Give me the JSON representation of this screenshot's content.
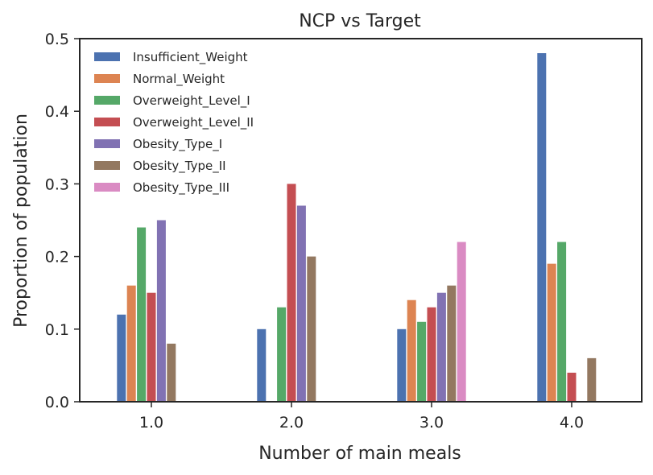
{
  "chart_data": {
    "type": "bar",
    "title": "NCP vs Target",
    "xlabel": "Number of main meals",
    "ylabel": "Proportion of population",
    "categories": [
      "1.0",
      "2.0",
      "3.0",
      "4.0"
    ],
    "ylim": [
      0,
      0.5
    ],
    "yticks": [
      "0.0",
      "0.1",
      "0.2",
      "0.3",
      "0.4",
      "0.5"
    ],
    "grid": false,
    "legend_position": "top-left",
    "series": [
      {
        "name": "Insufficient_Weight",
        "color": "#4c72b0",
        "values": [
          0.12,
          0.1,
          0.1,
          0.48
        ]
      },
      {
        "name": "Normal_Weight",
        "color": "#dd8452",
        "values": [
          0.16,
          null,
          0.14,
          0.19
        ]
      },
      {
        "name": "Overweight_Level_I",
        "color": "#55a868",
        "values": [
          0.24,
          0.13,
          0.11,
          0.22
        ]
      },
      {
        "name": "Overweight_Level_II",
        "color": "#c44e52",
        "values": [
          0.15,
          0.3,
          0.13,
          0.04
        ]
      },
      {
        "name": "Obesity_Type_I",
        "color": "#8172b3",
        "values": [
          0.25,
          0.27,
          0.15,
          null
        ]
      },
      {
        "name": "Obesity_Type_II",
        "color": "#937860",
        "values": [
          0.08,
          0.2,
          0.16,
          0.06
        ]
      },
      {
        "name": "Obesity_Type_III",
        "color": "#da8bc3",
        "values": [
          null,
          null,
          0.22,
          null
        ]
      }
    ]
  }
}
